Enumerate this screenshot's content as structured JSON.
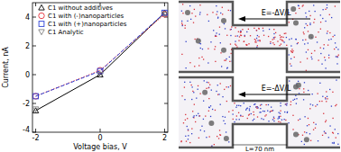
{
  "chart_data": {
    "type": "line",
    "x_label": "Voltage bias, V",
    "y_label": "Current, nA",
    "x": [
      -2,
      0,
      2
    ],
    "series": [
      {
        "name": "C1 without additives",
        "color": "#000000",
        "marker": "triangle",
        "line_style": "solid",
        "values": [
          -2.5,
          0.0,
          4.3
        ]
      },
      {
        "name": "C1 with (-)nanoparticles",
        "color": "#e8303a",
        "marker": "circle",
        "line_style": "dotted",
        "values": [
          -1.5,
          0.3,
          4.2
        ]
      },
      {
        "name": "C1 with (+)nanoparticles",
        "color": "#2b3fd6",
        "marker": "square",
        "line_style": "dashed",
        "values": [
          -1.5,
          0.25,
          4.3
        ]
      },
      {
        "name": "C1 Analytic",
        "color": "#808080",
        "marker": "triangle-down",
        "line_style": "none",
        "values": [
          -2.4,
          0.0,
          4.2
        ]
      }
    ],
    "xlim": [
      -2.1,
      2.1
    ],
    "ylim": [
      -4,
      5
    ],
    "xticks": [
      -2,
      0,
      2
    ],
    "yticks": [
      -4,
      -2,
      0,
      2,
      4
    ],
    "legend": "upper-left",
    "grid": false
  },
  "diagram": {
    "panels": [
      {
        "arrow_label": "E=-ΔV/L"
      },
      {
        "arrow_label": "E=-ΔV/L"
      }
    ],
    "length_label": "L=70 nm"
  }
}
